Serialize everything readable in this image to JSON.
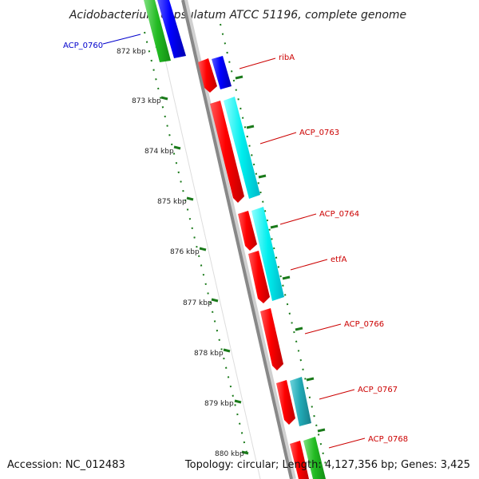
{
  "title": "Acidobacterium capsulatum ATCC 51196, complete genome",
  "footer": {
    "accession": "Accession: NC_012483",
    "summary": "Topology: circular; Length: 4,127,356 bp; Genes: 3,425"
  },
  "colors": {
    "backbone": "#888888",
    "tick": "#1a7a1a",
    "label_red": "#cc0000",
    "label_blue": "#0000cc"
  },
  "ticks": [
    {
      "kbp": 872,
      "label": "872 kbp"
    },
    {
      "kbp": 873,
      "label": "873 kbp"
    },
    {
      "kbp": 874,
      "label": "874 kbp"
    },
    {
      "kbp": 875,
      "label": "875 kbp"
    },
    {
      "kbp": 876,
      "label": "876 kbp"
    },
    {
      "kbp": 877,
      "label": "877 kbp"
    },
    {
      "kbp": 878,
      "label": "878 kbp"
    },
    {
      "kbp": 879,
      "label": "879 kbp"
    },
    {
      "kbp": 880,
      "label": "880 kbp"
    }
  ],
  "labels": [
    {
      "text": "ACP_0760",
      "color": "#0000cc"
    },
    {
      "text": "ribA",
      "color": "#cc0000"
    },
    {
      "text": "ACP_0763",
      "color": "#cc0000"
    },
    {
      "text": "ACP_0764",
      "color": "#cc0000"
    },
    {
      "text": "etfA",
      "color": "#cc0000"
    },
    {
      "text": "ACP_0766",
      "color": "#cc0000"
    },
    {
      "text": "ACP_0767",
      "color": "#cc0000"
    },
    {
      "text": "ACP_0768",
      "color": "#cc0000"
    }
  ]
}
